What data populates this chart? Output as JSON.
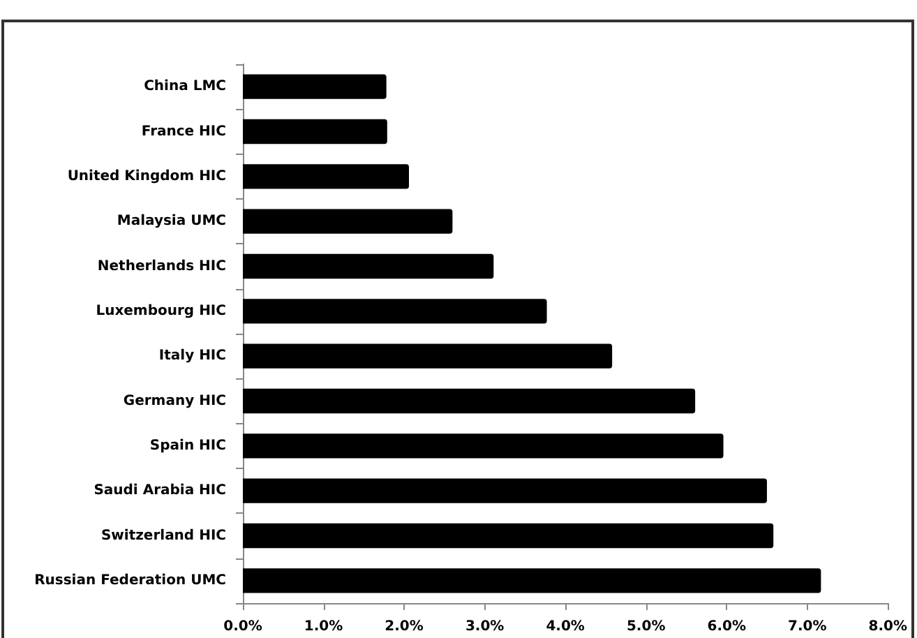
{
  "chart_data": {
    "type": "bar",
    "orientation": "horizontal",
    "categories": [
      "China LMC",
      "France HIC",
      "United Kingdom HIC",
      "Malaysia UMC",
      "Netherlands HIC",
      "Luxembourg HIC",
      "Italy HIC",
      "Germany HIC",
      "Spain HIC",
      "Saudi Arabia HIC",
      "Switzerland HIC",
      "Russian Federation UMC"
    ],
    "values": [
      1.78,
      1.79,
      2.06,
      2.6,
      3.11,
      3.77,
      4.58,
      5.61,
      5.96,
      6.5,
      6.58,
      7.17
    ],
    "color": "#000000",
    "xlim": [
      0,
      8
    ],
    "xticks": [
      {
        "value": 0,
        "label": "0.0%"
      },
      {
        "value": 1,
        "label": "1.0%"
      },
      {
        "value": 2,
        "label": "2.0%"
      },
      {
        "value": 3,
        "label": "3.0%"
      },
      {
        "value": 4,
        "label": "4.0%"
      },
      {
        "value": 5,
        "label": "5.0%"
      },
      {
        "value": 6,
        "label": "6.0%"
      },
      {
        "value": 7,
        "label": "7.0%"
      },
      {
        "value": 8,
        "label": "8.0%"
      }
    ],
    "grid": false
  }
}
